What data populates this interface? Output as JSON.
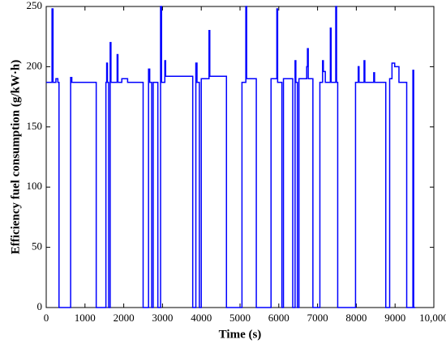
{
  "chart_data": {
    "type": "line",
    "xlabel": "Time (s)",
    "ylabel": "Efficiency fuel consumption (g/kW·h)",
    "color": "#0000ff",
    "xlim": [
      0,
      10000
    ],
    "xticks": [
      0,
      1000,
      2000,
      3000,
      4000,
      5000,
      6000,
      7000,
      8000,
      9000,
      {
        "value": 10000,
        "label": "10,000"
      }
    ],
    "ylim": [
      0,
      250
    ],
    "yticks": [
      0,
      50,
      100,
      150,
      200,
      250
    ],
    "x": [
      0,
      150,
      150,
      175,
      175,
      250,
      250,
      300,
      300,
      330,
      330,
      630,
      630,
      660,
      660,
      1290,
      1290,
      1540,
      1540,
      1560,
      1560,
      1580,
      1580,
      1610,
      1610,
      1650,
      1650,
      1670,
      1670,
      1830,
      1830,
      1850,
      1850,
      1950,
      1950,
      2100,
      2100,
      2500,
      2500,
      2640,
      2640,
      2670,
      2670,
      2720,
      2720,
      2760,
      2760,
      2880,
      2880,
      2950,
      2950,
      2975,
      2975,
      3060,
      3060,
      3080,
      3080,
      3780,
      3780,
      3860,
      3860,
      3890,
      3890,
      3950,
      3950,
      4000,
      4000,
      4200,
      4200,
      4220,
      4220,
      4650,
      4650,
      5050,
      5050,
      5150,
      5150,
      5170,
      5170,
      5420,
      5420,
      5800,
      5800,
      5950,
      5950,
      5970,
      5970,
      6080,
      6080,
      6120,
      6120,
      6360,
      6360,
      6420,
      6420,
      6440,
      6440,
      6480,
      6480,
      6520,
      6520,
      6720,
      6720,
      6740,
      6740,
      6760,
      6760,
      6880,
      6880,
      7060,
      7060,
      7130,
      7130,
      7150,
      7150,
      7200,
      7200,
      7330,
      7330,
      7350,
      7350,
      7470,
      7470,
      7490,
      7490,
      7520,
      7520,
      7980,
      7980,
      8050,
      8050,
      8070,
      8070,
      8200,
      8200,
      8220,
      8220,
      8450,
      8450,
      8470,
      8470,
      8760,
      8760,
      8860,
      8860,
      8920,
      8920,
      8990,
      8990,
      9100,
      9100,
      9300,
      9300,
      9460,
      9460,
      9480,
      9480,
      9520
    ],
    "values": [
      187,
      187,
      248,
      248,
      187,
      187,
      190,
      190,
      187,
      187,
      0,
      0,
      191,
      191,
      187,
      187,
      0,
      0,
      187,
      187,
      203,
      203,
      187,
      187,
      0,
      0,
      220,
      220,
      187,
      187,
      210,
      210,
      187,
      187,
      190,
      190,
      187,
      187,
      0,
      0,
      198,
      198,
      187,
      187,
      0,
      0,
      187,
      187,
      0,
      0,
      250,
      250,
      187,
      187,
      205,
      205,
      192,
      192,
      0,
      0,
      203,
      203,
      187,
      187,
      0,
      0,
      190,
      190,
      230,
      230,
      192,
      192,
      0,
      0,
      187,
      187,
      250,
      250,
      190,
      190,
      0,
      0,
      190,
      190,
      248,
      248,
      187,
      187,
      0,
      0,
      190,
      190,
      0,
      0,
      205,
      205,
      187,
      187,
      0,
      0,
      190,
      190,
      200,
      200,
      215,
      215,
      190,
      190,
      0,
      0,
      187,
      187,
      205,
      205,
      196,
      196,
      187,
      187,
      232,
      232,
      187,
      187,
      250,
      250,
      187,
      187,
      0,
      0,
      187,
      187,
      200,
      200,
      187,
      187,
      205,
      205,
      187,
      187,
      195,
      195,
      187,
      187,
      0,
      0,
      190,
      190,
      203,
      203,
      200,
      200,
      187,
      187,
      0,
      0,
      197,
      197,
      0,
      0
    ]
  }
}
